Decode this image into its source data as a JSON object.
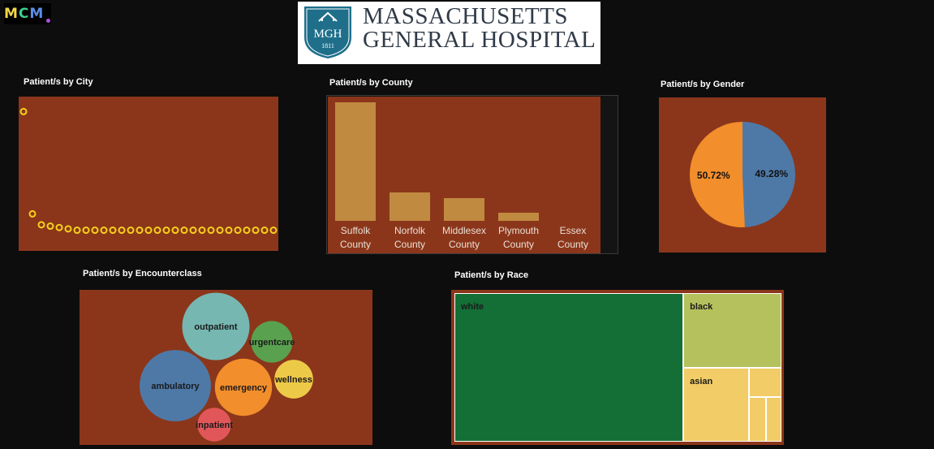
{
  "branding": {
    "mcm_logo": [
      "M",
      "C",
      "M"
    ],
    "hospital_initials": "MGH",
    "hospital_year": "1811",
    "hospital_name_line1": "MASSACHUSETTS",
    "hospital_name_line2": "GENERAL HOSPITAL"
  },
  "colors": {
    "panel_bg": "#8b361b",
    "page_bg": "#0d0d0d",
    "city_marker": "#f5d21b",
    "county_bar": "#c08a40",
    "gender_female": "#f28e2b",
    "gender_male": "#4e79a7",
    "race_white": "#136f36",
    "race_black": "#b5c15c",
    "race_asian": "#f2cc66"
  },
  "titles": {
    "city": "Patient/s by City",
    "county": "Patient/s by County",
    "gender": "Patient/s by Gender",
    "encounter": "Patient/s by Encounterclass",
    "race": "Patient/s by Race"
  },
  "chart_data": [
    {
      "id": "city",
      "type": "scatter",
      "title": "Patient/s by City",
      "x": [
        1,
        2,
        3,
        4,
        5,
        6,
        7,
        8,
        9,
        10,
        11,
        12,
        13,
        14,
        15,
        16,
        17,
        18,
        19,
        20,
        21,
        22,
        23,
        24,
        25,
        26,
        27,
        28,
        29
      ],
      "y": [
        95,
        20,
        12,
        11,
        10,
        9,
        8,
        8,
        8,
        8,
        8,
        8,
        8,
        8,
        8,
        8,
        8,
        8,
        8,
        8,
        8,
        8,
        8,
        8,
        8,
        8,
        8,
        8,
        8
      ],
      "ylim": [
        0,
        100
      ]
    },
    {
      "id": "county",
      "type": "bar",
      "title": "Patient/s by County",
      "categories": [
        [
          "Suffolk",
          "County"
        ],
        [
          "Norfolk",
          "County"
        ],
        [
          "Middlesex",
          "County"
        ],
        [
          "Plymouth",
          "County"
        ],
        [
          "Essex",
          "County"
        ]
      ],
      "values": [
        100,
        24,
        19,
        7,
        0
      ],
      "ylim": [
        0,
        100
      ]
    },
    {
      "id": "gender",
      "type": "pie",
      "title": "Patient/s by Gender",
      "slices": [
        {
          "label": "49.28%",
          "value": 49.28,
          "color": "#4e79a7"
        },
        {
          "label": "50.72%",
          "value": 50.72,
          "color": "#f28e2b"
        }
      ]
    },
    {
      "id": "encounter",
      "type": "bubble",
      "title": "Patient/s by Encounterclass",
      "bubbles": [
        {
          "label": "outpatient",
          "value": 100,
          "color": "#76b7b2"
        },
        {
          "label": "urgentcare",
          "value": 38,
          "color": "#59a14f"
        },
        {
          "label": "ambulatory",
          "value": 112,
          "color": "#4e79a7"
        },
        {
          "label": "emergency",
          "value": 72,
          "color": "#f28e2b"
        },
        {
          "label": "wellness",
          "value": 33,
          "color": "#edc948"
        },
        {
          "label": "inpatient",
          "value": 25,
          "color": "#e15759"
        }
      ]
    },
    {
      "id": "race",
      "type": "treemap",
      "title": "Patient/s by Race",
      "items": [
        {
          "label": "white",
          "value": 70,
          "color": "#136f36"
        },
        {
          "label": "black",
          "value": 15,
          "color": "#b5c15c"
        },
        {
          "label": "asian",
          "value": 10,
          "color": "#f2cc66"
        },
        {
          "label": "",
          "value": 2,
          "color": "#f2cc66"
        },
        {
          "label": "",
          "value": 1.6,
          "color": "#f2cc66"
        },
        {
          "label": "",
          "value": 1.4,
          "color": "#f2cc66"
        }
      ]
    }
  ]
}
